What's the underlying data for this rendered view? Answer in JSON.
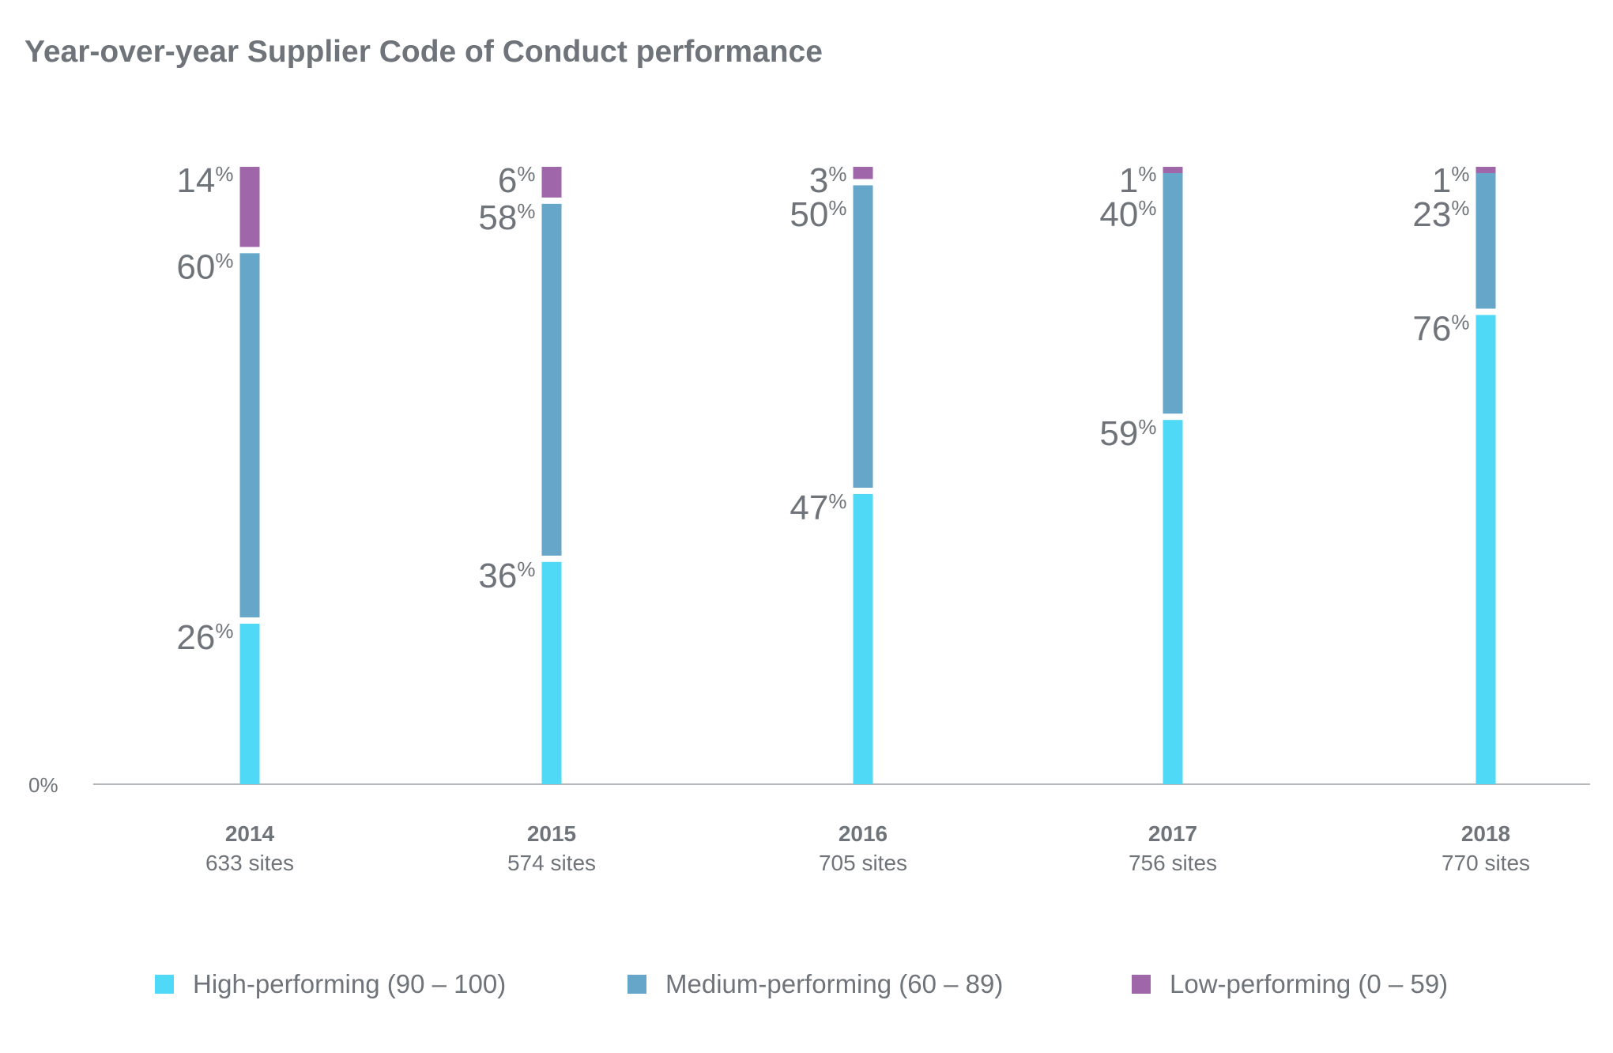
{
  "chart_data": {
    "type": "bar",
    "stacked": true,
    "title": "Year-over-year Supplier Code of Conduct performance",
    "categories": [
      "2014",
      "2015",
      "2016",
      "2017",
      "2018"
    ],
    "sublabels": [
      "633 sites",
      "574 sites",
      "705 sites",
      "756 sites",
      "770 sites"
    ],
    "y_tick_label": "0%",
    "ylim": [
      0,
      100
    ],
    "grid": false,
    "legend_position": "bottom",
    "series": [
      {
        "name": "High-performing (90 – 100)",
        "color": "#4fd9f7",
        "values": [
          26,
          36,
          47,
          59,
          76
        ]
      },
      {
        "name": "Medium-performing (60 – 89)",
        "color": "#65a6c9",
        "values": [
          60,
          58,
          50,
          40,
          23
        ]
      },
      {
        "name": "Low-performing (0 – 59)",
        "color": "#a066aa",
        "values": [
          14,
          6,
          3,
          1,
          1
        ]
      }
    ]
  }
}
